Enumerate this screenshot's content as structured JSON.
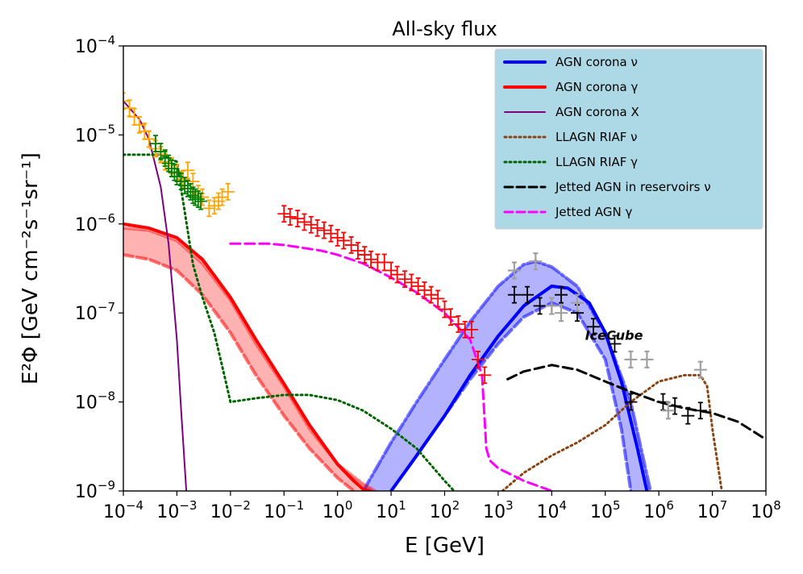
{
  "chart_data": {
    "type": "line",
    "title": "All-sky flux",
    "xlabel": "E [GeV]",
    "ylabel": "E²Φ [GeV cm⁻²s⁻¹sr⁻¹]",
    "xscale": "log",
    "yscale": "log",
    "xlim": [
      0.0001,
      100000000
    ],
    "ylim": [
      1e-09,
      0.0001
    ],
    "x_ticks": [
      {
        "value": 0.0001,
        "base": "10",
        "exp": "−4"
      },
      {
        "value": 0.001,
        "base": "10",
        "exp": "−3"
      },
      {
        "value": 0.01,
        "base": "10",
        "exp": "−2"
      },
      {
        "value": 0.1,
        "base": "10",
        "exp": "−1"
      },
      {
        "value": 1,
        "base": "10",
        "exp": "0"
      },
      {
        "value": 10,
        "base": "10",
        "exp": "1"
      },
      {
        "value": 100,
        "base": "10",
        "exp": "2"
      },
      {
        "value": 1000,
        "base": "10",
        "exp": "3"
      },
      {
        "value": 10000,
        "base": "10",
        "exp": "4"
      },
      {
        "value": 100000,
        "base": "10",
        "exp": "5"
      },
      {
        "value": 1000000,
        "base": "10",
        "exp": "6"
      },
      {
        "value": 10000000,
        "base": "10",
        "exp": "7"
      },
      {
        "value": 100000000,
        "base": "10",
        "exp": "8"
      }
    ],
    "y_ticks": [
      {
        "value": 1e-09,
        "base": "10",
        "exp": "−9"
      },
      {
        "value": 1e-08,
        "base": "10",
        "exp": "−8"
      },
      {
        "value": 1e-07,
        "base": "10",
        "exp": "−7"
      },
      {
        "value": 1e-06,
        "base": "10",
        "exp": "−6"
      },
      {
        "value": 1e-05,
        "base": "10",
        "exp": "−5"
      },
      {
        "value": 0.0001,
        "base": "10",
        "exp": "−4"
      }
    ],
    "legend": {
      "position": "top-right",
      "background": "#add8e6",
      "entries": [
        {
          "label": "AGN corona ν",
          "color": "#0000ff",
          "style": "solid-thick"
        },
        {
          "label": "AGN corona γ",
          "color": "#ff0000",
          "style": "solid-thick"
        },
        {
          "label": "AGN corona X",
          "color": "#800080",
          "style": "solid"
        },
        {
          "label": "LLAGN RIAF ν",
          "color": "#8b4513",
          "style": "dotted"
        },
        {
          "label": "LLAGN RIAF γ",
          "color": "#006400",
          "style": "dotted"
        },
        {
          "label": "Jetted AGN in reservoirs ν",
          "color": "#000000",
          "style": "dashed"
        },
        {
          "label": "Jetted AGN γ",
          "color": "#ff00ff",
          "style": "dashed"
        }
      ]
    },
    "annotations": [
      {
        "text": "IceCube",
        "x": 200000,
        "y": 5e-08
      }
    ],
    "series": [
      {
        "name": "AGN corona ν",
        "color": "#0000ff",
        "x": [
          4,
          10,
          30,
          100,
          300,
          1000,
          3000,
          10000,
          20000,
          50000,
          100000,
          200000,
          400000,
          600000
        ],
        "y": [
          5e-10,
          1e-09,
          2.5e-09,
          7e-09,
          2e-08,
          5.5e-08,
          1.2e-07,
          2e-07,
          1.9e-07,
          1.3e-07,
          6e-08,
          1.7e-08,
          3e-09,
          1e-09
        ]
      },
      {
        "name": "AGN corona ν (band upper)",
        "color": "#0000ff",
        "x": [
          3,
          10,
          30,
          100,
          300,
          1000,
          3000,
          5000,
          10000,
          30000,
          100000,
          300000,
          700000
        ],
        "y": [
          1e-09,
          3.5e-09,
          1e-08,
          3e-08,
          8e-08,
          2e-07,
          3.5e-07,
          3.8e-07,
          3.3e-07,
          2e-07,
          6e-08,
          1e-08,
          1e-09
        ]
      },
      {
        "name": "AGN corona ν (band lower)",
        "color": "#0000ff",
        "x": [
          10,
          30,
          100,
          300,
          1000,
          3000,
          10000,
          30000,
          100000,
          200000,
          300000
        ],
        "y": [
          1e-09,
          2.5e-09,
          7e-09,
          1.8e-08,
          4.5e-08,
          9e-08,
          1.3e-07,
          1e-07,
          3e-08,
          5e-09,
          1e-09
        ]
      },
      {
        "name": "AGN corona γ",
        "color": "#ff0000",
        "x": [
          0.0001,
          0.0003,
          0.001,
          0.003,
          0.01,
          0.03,
          0.1,
          0.3,
          1,
          2,
          3,
          4
        ],
        "y": [
          1e-06,
          9e-07,
          7e-07,
          4e-07,
          1.5e-07,
          5e-08,
          1.6e-08,
          5.5e-09,
          2e-09,
          1.3e-09,
          1.05e-09,
          1e-09
        ]
      },
      {
        "name": "AGN corona γ (band upper)",
        "color": "#ff0000",
        "x": [
          0.0001,
          0.0003,
          0.001,
          0.003,
          0.01,
          0.03,
          0.1,
          0.3,
          1,
          3,
          5
        ],
        "y": [
          9e-07,
          8.5e-07,
          6.5e-07,
          3.6e-07,
          1.4e-07,
          4.5e-08,
          1.5e-08,
          5e-09,
          2e-09,
          1.2e-09,
          1e-09
        ]
      },
      {
        "name": "AGN corona γ (band lower)",
        "color": "#ff0000",
        "x": [
          0.0001,
          0.0003,
          0.001,
          0.003,
          0.01,
          0.03,
          0.1,
          0.3,
          1,
          2
        ],
        "y": [
          4.5e-07,
          4e-07,
          3e-07,
          1.6e-07,
          6e-08,
          2e-08,
          7e-09,
          3e-09,
          1.4e-09,
          1e-09
        ]
      },
      {
        "name": "AGN corona X",
        "color": "#800080",
        "x": [
          0.0001,
          0.0002,
          0.0003,
          0.0005,
          0.0007,
          0.001,
          0.0012,
          0.0015
        ],
        "y": [
          2.4e-05,
          1.5e-05,
          9e-06,
          2.6e-06,
          6e-07,
          5e-08,
          8e-09,
          1e-09
        ]
      },
      {
        "name": "LLAGN RIAF ν",
        "color": "#8b4513",
        "x": [
          1200,
          3000,
          10000,
          30000,
          100000,
          300000,
          1000000,
          3000000,
          6000000,
          8000000,
          10000000,
          15000000
        ],
        "y": [
          1e-09,
          1.6e-09,
          2.5e-09,
          3.5e-09,
          5.5e-09,
          1e-08,
          1.7e-08,
          2e-08,
          2e-08,
          1.5e-08,
          5e-09,
          1e-09
        ]
      },
      {
        "name": "LLAGN RIAF γ",
        "color": "#006400",
        "x": [
          0.0001,
          0.0005,
          0.001,
          0.002,
          0.003,
          0.005,
          0.008,
          0.01,
          0.03,
          0.1,
          0.3,
          1,
          3,
          10,
          30,
          100,
          150
        ],
        "y": [
          6e-06,
          6e-06,
          5e-06,
          3.5e-07,
          1.5e-07,
          6e-08,
          1.8e-08,
          1e-08,
          1.1e-08,
          1.2e-08,
          1.2e-08,
          1.05e-08,
          8e-09,
          5e-09,
          3e-09,
          1.3e-09,
          1e-09
        ]
      },
      {
        "name": "Jetted AGN in reservoirs ν",
        "color": "#000000",
        "x": [
          1500,
          3000,
          10000,
          30000,
          100000,
          300000,
          1000000,
          3000000,
          10000000,
          30000000,
          100000000
        ],
        "y": [
          1.8e-08,
          2.2e-08,
          2.6e-08,
          2.3e-08,
          1.7e-08,
          1.3e-08,
          1e-08,
          8.5e-09,
          7.5e-09,
          6e-09,
          3.8e-09
        ]
      },
      {
        "name": "Jetted AGN γ",
        "color": "#ff00ff",
        "x": [
          0.01,
          0.05,
          0.1,
          0.5,
          1,
          3,
          10,
          30,
          100,
          300,
          500,
          600,
          700,
          1000,
          3000,
          10000
        ],
        "y": [
          6e-07,
          6e-07,
          5.8e-07,
          5e-07,
          4.5e-07,
          3.6e-07,
          2.5e-07,
          1.7e-07,
          1e-07,
          5e-08,
          2e-08,
          3e-09,
          2.2e-09,
          1.8e-09,
          1.3e-09,
          1e-09
        ]
      }
    ],
    "data_points": [
      {
        "name": "orange (X-ray) upper limits",
        "color": "#ffa500",
        "x": [
          0.0001,
          0.00013,
          0.00016,
          0.0002,
          0.00025,
          0.0003,
          0.0004,
          0.0005,
          0.0006,
          0.0008,
          0.001,
          0.0013,
          0.0016,
          0.002,
          0.0025,
          0.003,
          0.004,
          0.005,
          0.006,
          0.007,
          0.009
        ],
        "y": [
          2.4e-05,
          2e-05,
          1.6e-05,
          1.3e-05,
          1.1e-05,
          9e-06,
          7e-06,
          6e-06,
          5e-06,
          4.5e-06,
          3.8e-06,
          3.2e-06,
          4e-06,
          3e-06,
          2.2e-06,
          2e-06,
          1.5e-06,
          1.6e-06,
          1.8e-06,
          2e-06,
          2.3e-06
        ]
      },
      {
        "name": "green (MeV) data",
        "color": "#008000",
        "x": [
          0.0004,
          0.0005,
          0.0006,
          0.0007,
          0.0008,
          0.0009,
          0.001,
          0.0012,
          0.0014,
          0.0016,
          0.0018,
          0.002,
          0.0022,
          0.0025,
          0.0028
        ],
        "y": [
          8e-06,
          6.5e-06,
          5.5e-06,
          4.8e-06,
          4.2e-06,
          3.8e-06,
          3.4e-06,
          3e-06,
          2.7e-06,
          2.5e-06,
          2.3e-06,
          2.1e-06,
          2e-06,
          1.9e-06,
          1.8e-06
        ]
      },
      {
        "name": "red (Fermi) data",
        "color": "#ff0000",
        "x": [
          0.1,
          0.13,
          0.18,
          0.24,
          0.32,
          0.42,
          0.56,
          0.75,
          1,
          1.3,
          1.8,
          2.4,
          3.2,
          4.2,
          5.6,
          7.5,
          10,
          13,
          18,
          24,
          32,
          42,
          56,
          75,
          100,
          130,
          180,
          240,
          320,
          420,
          560
        ],
        "y": [
          1.3e-06,
          1.2e-06,
          1.15e-06,
          1.05e-06,
          9.8e-07,
          9e-07,
          8.5e-07,
          7.8e-07,
          7e-07,
          6.5e-07,
          5.8e-07,
          5e-07,
          4.5e-07,
          4e-07,
          3.7e-07,
          3.7e-07,
          3e-07,
          2.7e-07,
          2.4e-07,
          2.2e-07,
          2e-07,
          1.8e-07,
          1.6e-07,
          1.45e-07,
          1.1e-07,
          9e-08,
          7.5e-08,
          6.5e-08,
          6.5e-08,
          3e-08,
          2e-08
        ]
      },
      {
        "name": "IceCube black data",
        "color": "#000000",
        "x": [
          2000,
          3500,
          6000,
          10000,
          15000,
          30000,
          60000,
          150000,
          300000,
          1200000,
          2000000,
          3500000,
          6000000
        ],
        "y": [
          1.6e-07,
          1.6e-07,
          1.2e-07,
          1.2e-07,
          1.6e-07,
          1e-07,
          7e-08,
          4.5e-08,
          1e-08,
          1e-08,
          9e-09,
          7e-09,
          8e-09
        ]
      },
      {
        "name": "IceCube grey data",
        "color": "#a0a0a0",
        "x": [
          2000,
          5000,
          10000,
          15000,
          30000,
          300000,
          600000,
          1500000,
          6000000
        ],
        "y": [
          3e-07,
          3.8e-07,
          1.2e-07,
          1e-07,
          1.3e-07,
          3e-08,
          3e-08,
          8e-09,
          2.3e-08
        ]
      }
    ]
  }
}
